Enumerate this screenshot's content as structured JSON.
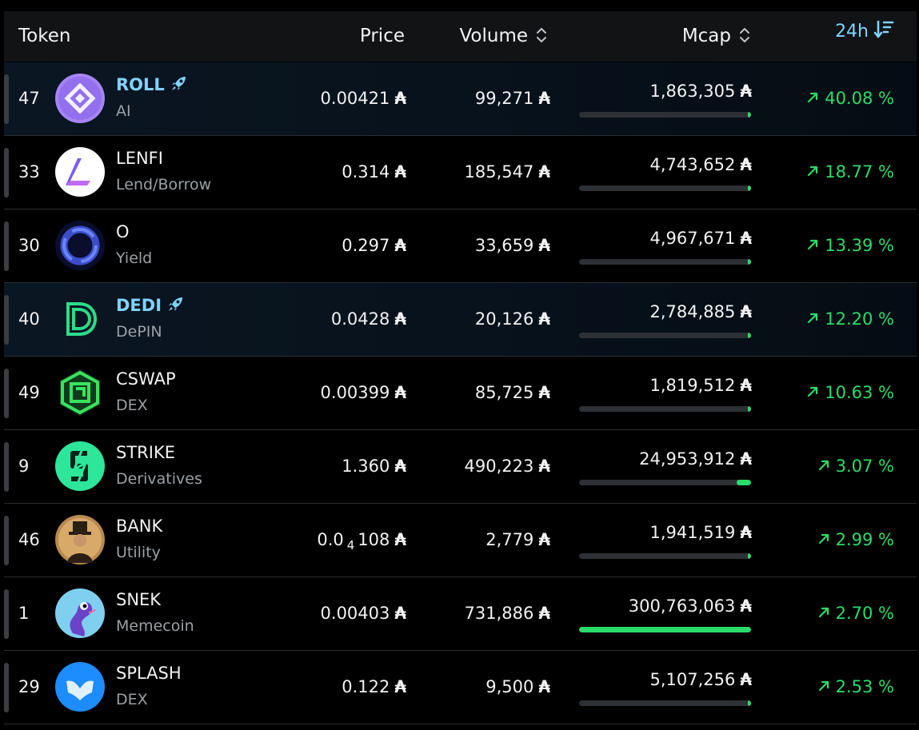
{
  "header": {
    "token_label": "Token",
    "price_label": "Price",
    "volume_label": "Volume",
    "mcap_label": "Mcap",
    "period_label": "24h",
    "period_icon": "sort-descending-icon",
    "sort_icon": "sort-arrows-icon"
  },
  "currency_symbol": "₳",
  "colors": {
    "accent": "#7fd3ff",
    "positive": "#2bdc6a",
    "header_bg": "#111315",
    "featured_bg": "#0a1622",
    "muted": "#9aa0a6"
  },
  "rows": [
    {
      "rank": "47",
      "name": "ROLL",
      "category": "AI",
      "featured": true,
      "price": "0.00421",
      "volume": "99,271",
      "mcap": "1,863,305",
      "mcap_share": 0.006,
      "change": "40.08 %",
      "logo": "roll-logo"
    },
    {
      "rank": "33",
      "name": "LENFI",
      "category": "Lend/Borrow",
      "featured": false,
      "price": "0.314",
      "volume": "185,547",
      "mcap": "4,743,652",
      "mcap_share": 0.016,
      "change": "18.77 %",
      "logo": "lenfi-logo"
    },
    {
      "rank": "30",
      "name": "O",
      "category": "Yield",
      "featured": false,
      "price": "0.297",
      "volume": "33,659",
      "mcap": "4,967,671",
      "mcap_share": 0.017,
      "change": "13.39 %",
      "logo": "o-logo"
    },
    {
      "rank": "40",
      "name": "DEDI",
      "category": "DePIN",
      "featured": true,
      "price": "0.0428",
      "volume": "20,126",
      "mcap": "2,784,885",
      "mcap_share": 0.009,
      "change": "12.20 %",
      "logo": "dedi-logo"
    },
    {
      "rank": "49",
      "name": "CSWAP",
      "category": "DEX",
      "featured": false,
      "price": "0.00399",
      "volume": "85,725",
      "mcap": "1,819,512",
      "mcap_share": 0.006,
      "change": "10.63 %",
      "logo": "cswap-logo"
    },
    {
      "rank": "9",
      "name": "STRIKE",
      "category": "Derivatives",
      "featured": false,
      "price": "1.360",
      "volume": "490,223",
      "mcap": "24,953,912",
      "mcap_share": 0.083,
      "change": "3.07 %",
      "logo": "strike-logo"
    },
    {
      "rank": "46",
      "name": "BANK",
      "category": "Utility",
      "featured": false,
      "price_main": "0.0",
      "price_sub": "4",
      "price_tail": "108",
      "volume": "2,779",
      "mcap": "1,941,519",
      "mcap_share": 0.006,
      "change": "2.99 %",
      "logo": "bank-logo"
    },
    {
      "rank": "1",
      "name": "SNEK",
      "category": "Memecoin",
      "featured": false,
      "price": "0.00403",
      "volume": "731,886",
      "mcap": "300,763,063",
      "mcap_share": 1.0,
      "change": "2.70 %",
      "logo": "snek-logo"
    },
    {
      "rank": "29",
      "name": "SPLASH",
      "category": "DEX",
      "featured": false,
      "price": "0.122",
      "volume": "9,500",
      "mcap": "5,107,256",
      "mcap_share": 0.017,
      "change": "2.53 %",
      "logo": "splash-logo"
    }
  ]
}
